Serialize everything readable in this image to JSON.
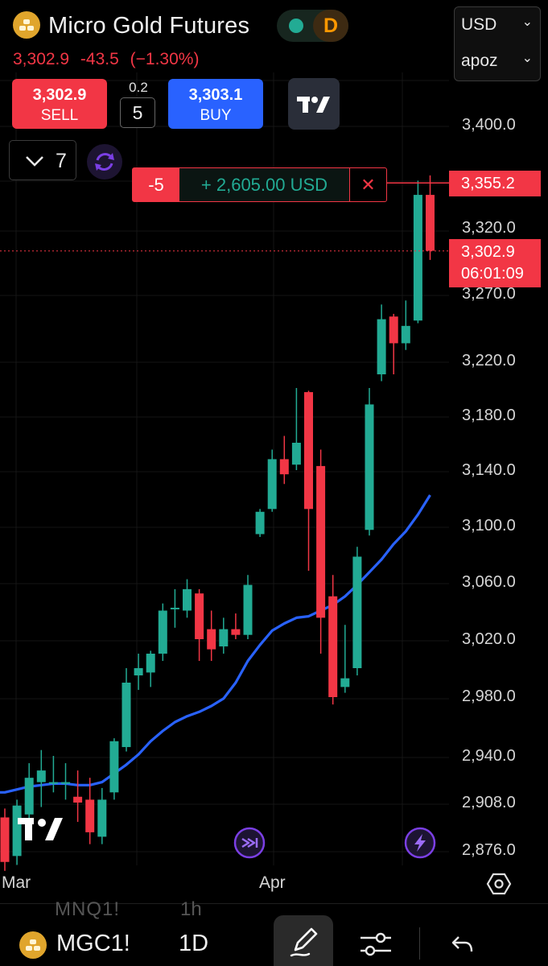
{
  "header": {
    "instrument_title": "Micro Gold Futures",
    "status_letter": "D",
    "last_price": "3,302.9",
    "change": "-43.5",
    "change_pct": "(−1.30%)"
  },
  "selectors": {
    "currency": "USD",
    "account": "apoz"
  },
  "trade": {
    "sell_price": "3,302.9",
    "sell_label": "SELL",
    "spread": "0.2",
    "quantity": "5",
    "buy_price": "3,303.1",
    "buy_label": "BUY"
  },
  "indicators": {
    "count": "7"
  },
  "position": {
    "qty": "-5",
    "pnl": "+ 2,605.00 USD",
    "close_glyph": "✕"
  },
  "price_axis": {
    "labels": [
      "3,400.0",
      "3,320.0",
      "3,270.0",
      "3,220.0",
      "3,180.0",
      "3,140.0",
      "3,100.0",
      "3,060.0",
      "3,020.0",
      "2,980.0",
      "2,940.0",
      "2,908.0",
      "2,876.0"
    ],
    "entry_tag": "3,355.2",
    "last_tag_price": "3,302.9",
    "last_tag_timer": "06:01:09"
  },
  "time_axis": {
    "labels": [
      "Mar",
      "Apr"
    ]
  },
  "bottom_bar": {
    "ghost_symbol": "MNQ1!",
    "ghost_timeframe": "1h",
    "symbol": "MGC1!",
    "timeframe": "1D"
  },
  "colors": {
    "up": "#22ab94",
    "down": "#f23645",
    "ma": "#2962ff",
    "accent_purple": "#7b3fe4"
  },
  "icons": [
    "gold-bars-icon",
    "chevron-down-icon",
    "tradingview-logo-icon",
    "sync-icon",
    "close-icon",
    "replay-icon",
    "lightning-icon",
    "settings-hexagon-icon",
    "pencil-icon",
    "sliders-icon",
    "undo-icon"
  ],
  "chart_data": {
    "type": "candlestick",
    "series_ma": "moving average",
    "x": [
      "Mar",
      "Apr"
    ],
    "ylim": [
      2860,
      3420
    ],
    "candles": [
      {
        "o": 2898,
        "h": 2904,
        "l": 2862,
        "c": 2868
      },
      {
        "o": 2872,
        "h": 2910,
        "l": 2866,
        "c": 2906
      },
      {
        "o": 2900,
        "h": 2935,
        "l": 2892,
        "c": 2925
      },
      {
        "o": 2922,
        "h": 2944,
        "l": 2905,
        "c": 2930
      },
      {
        "o": 2922,
        "h": 2940,
        "l": 2915,
        "c": 2922
      },
      {
        "o": 2922,
        "h": 2935,
        "l": 2910,
        "c": 2922
      },
      {
        "o": 2912,
        "h": 2930,
        "l": 2895,
        "c": 2908
      },
      {
        "o": 2910,
        "h": 2925,
        "l": 2880,
        "c": 2888
      },
      {
        "o": 2885,
        "h": 2918,
        "l": 2880,
        "c": 2910
      },
      {
        "o": 2915,
        "h": 2952,
        "l": 2910,
        "c": 2950
      },
      {
        "o": 2946,
        "h": 3000,
        "l": 2943,
        "c": 2990
      },
      {
        "o": 2995,
        "h": 3010,
        "l": 2985,
        "c": 3000
      },
      {
        "o": 2997,
        "h": 3012,
        "l": 2987,
        "c": 3010
      },
      {
        "o": 3010,
        "h": 3045,
        "l": 3005,
        "c": 3040
      },
      {
        "o": 3042,
        "h": 3055,
        "l": 3028,
        "c": 3042
      },
      {
        "o": 3040,
        "h": 3062,
        "l": 3035,
        "c": 3055
      },
      {
        "o": 3052,
        "h": 3055,
        "l": 3005,
        "c": 3020
      },
      {
        "o": 3027,
        "h": 3040,
        "l": 3005,
        "c": 3013
      },
      {
        "o": 3015,
        "h": 3035,
        "l": 3010,
        "c": 3027
      },
      {
        "o": 3027,
        "h": 3038,
        "l": 3020,
        "c": 3023
      },
      {
        "o": 3023,
        "h": 3065,
        "l": 3020,
        "c": 3058
      },
      {
        "o": 3094,
        "h": 3112,
        "l": 3092,
        "c": 3110
      },
      {
        "o": 3112,
        "h": 3155,
        "l": 3110,
        "c": 3148
      },
      {
        "o": 3148,
        "h": 3165,
        "l": 3130,
        "c": 3137
      },
      {
        "o": 3144,
        "h": 3200,
        "l": 3140,
        "c": 3160
      },
      {
        "o": 3197,
        "h": 3198,
        "l": 3068,
        "c": 3112
      },
      {
        "o": 3143,
        "h": 3155,
        "l": 3010,
        "c": 3035
      },
      {
        "o": 3050,
        "h": 3065,
        "l": 2975,
        "c": 2980
      },
      {
        "o": 2987,
        "h": 3030,
        "l": 2983,
        "c": 2993
      },
      {
        "o": 3000,
        "h": 3085,
        "l": 2995,
        "c": 3078
      },
      {
        "o": 3097,
        "h": 3200,
        "l": 3093,
        "c": 3188
      },
      {
        "o": 3210,
        "h": 3262,
        "l": 3205,
        "c": 3251
      },
      {
        "o": 3253,
        "h": 3255,
        "l": 3210,
        "c": 3233
      },
      {
        "o": 3233,
        "h": 3265,
        "l": 3228,
        "c": 3246
      },
      {
        "o": 3250,
        "h": 3357,
        "l": 3248,
        "c": 3346
      },
      {
        "o": 3346,
        "h": 3361,
        "l": 3296,
        "c": 3303
      }
    ],
    "moving_average": [
      2915,
      2917,
      2919,
      2920,
      2921,
      2921,
      2920,
      2920,
      2922,
      2928,
      2934,
      2941,
      2950,
      2957,
      2963,
      2967,
      2970,
      2974,
      2979,
      2990,
      3005,
      3016,
      3026,
      3031,
      3035,
      3036,
      3040,
      3044,
      3050,
      3058,
      3067,
      3076,
      3087,
      3096,
      3108,
      3122
    ],
    "last_price": 3302.9,
    "position_entry": 3355.2
  }
}
